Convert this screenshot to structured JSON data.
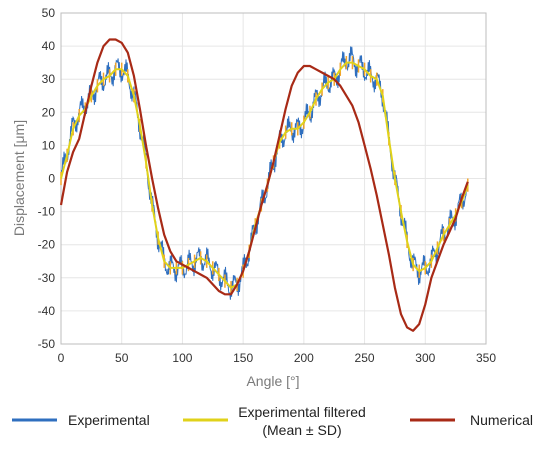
{
  "chart_data": {
    "type": "line",
    "xlabel": "Angle [°]",
    "ylabel": "Displacement [μm]",
    "xlim": [
      0,
      350
    ],
    "ylim": [
      -50,
      50
    ],
    "xticks": [
      0,
      50,
      100,
      150,
      200,
      250,
      300,
      350
    ],
    "yticks": [
      -50,
      -40,
      -30,
      -20,
      -10,
      0,
      10,
      20,
      30,
      40,
      50
    ],
    "grid": true,
    "legend_position": "bottom",
    "series": [
      {
        "name": "Experimental",
        "color": "#2f6fbf",
        "x": [
          0,
          5,
          10,
          15,
          20,
          25,
          30,
          35,
          40,
          45,
          50,
          55,
          60,
          65,
          70,
          75,
          80,
          85,
          90,
          95,
          100,
          105,
          110,
          115,
          120,
          125,
          130,
          135,
          140,
          145,
          150,
          155,
          160,
          165,
          170,
          175,
          180,
          185,
          190,
          195,
          200,
          205,
          210,
          215,
          220,
          225,
          230,
          235,
          240,
          245,
          250,
          255,
          260,
          265,
          270,
          275,
          280,
          285,
          290,
          295,
          300,
          305,
          310,
          315,
          320,
          325,
          330,
          335
        ],
        "y": [
          0,
          8,
          16,
          20,
          22,
          25,
          28,
          30,
          31,
          33,
          33,
          31,
          25,
          16,
          5,
          -8,
          -18,
          -25,
          -27,
          -27,
          -27,
          -26,
          -25,
          -24,
          -25,
          -27,
          -29,
          -31,
          -33,
          -32,
          -28,
          -22,
          -14,
          -8,
          -2,
          5,
          11,
          14,
          15,
          15,
          17,
          20,
          24,
          27,
          29,
          30,
          33,
          36,
          36,
          34,
          33,
          31,
          30,
          25,
          12,
          0,
          -10,
          -19,
          -26,
          -28,
          -27,
          -25,
          -21,
          -17,
          -14,
          -11,
          -7,
          -2
        ]
      },
      {
        "name": "Experimental filtered\n(Mean ± SD)",
        "color": "#e0d21a",
        "x": [
          0,
          5,
          10,
          15,
          20,
          25,
          30,
          35,
          40,
          45,
          50,
          55,
          60,
          65,
          70,
          75,
          80,
          85,
          90,
          95,
          100,
          105,
          110,
          115,
          120,
          125,
          130,
          135,
          140,
          145,
          150,
          155,
          160,
          165,
          170,
          175,
          180,
          185,
          190,
          195,
          200,
          205,
          210,
          215,
          220,
          225,
          230,
          235,
          240,
          245,
          250,
          255,
          260,
          265,
          270,
          275,
          280,
          285,
          290,
          295,
          300,
          305,
          310,
          315,
          320,
          325,
          330,
          335
        ],
        "y": [
          0,
          7,
          15,
          19,
          21,
          25,
          28,
          30,
          31,
          33,
          33,
          31,
          25,
          16,
          5,
          -8,
          -18,
          -25,
          -27,
          -27,
          -27,
          -26,
          -25,
          -24,
          -25,
          -27,
          -29,
          -31,
          -33,
          -32,
          -28,
          -22,
          -14,
          -8,
          -2,
          5,
          11,
          14,
          15,
          15,
          17,
          20,
          24,
          27,
          29,
          30,
          33,
          35,
          35,
          34,
          33,
          31,
          30,
          25,
          12,
          0,
          -10,
          -19,
          -26,
          -28,
          -27,
          -25,
          -21,
          -17,
          -14,
          -11,
          -7,
          -2
        ]
      },
      {
        "name": "Numerical",
        "color": "#a82a16",
        "x": [
          0,
          5,
          10,
          15,
          20,
          25,
          30,
          35,
          40,
          45,
          50,
          55,
          60,
          65,
          70,
          75,
          80,
          85,
          90,
          95,
          100,
          105,
          110,
          115,
          120,
          125,
          130,
          135,
          140,
          145,
          150,
          155,
          160,
          165,
          170,
          175,
          180,
          185,
          190,
          195,
          200,
          205,
          210,
          215,
          220,
          225,
          230,
          235,
          240,
          245,
          250,
          255,
          260,
          265,
          270,
          275,
          280,
          285,
          290,
          295,
          300,
          305,
          310,
          315,
          320,
          325,
          330,
          335
        ],
        "y": [
          -8,
          2,
          8,
          12,
          20,
          28,
          35,
          40,
          42,
          42,
          41,
          38,
          31,
          21,
          10,
          0,
          -9,
          -17,
          -22,
          -25,
          -26,
          -27,
          -28,
          -29,
          -30,
          -32,
          -34,
          -35,
          -35,
          -32,
          -28,
          -22,
          -15,
          -8,
          -2,
          5,
          13,
          21,
          28,
          32,
          34,
          34,
          33,
          32,
          31,
          30,
          28,
          25,
          22,
          17,
          10,
          3,
          -5,
          -14,
          -23,
          -33,
          -41,
          -45,
          -46,
          -44,
          -38,
          -30,
          -25,
          -20,
          -16,
          -12,
          -6,
          -1
        ]
      }
    ]
  }
}
